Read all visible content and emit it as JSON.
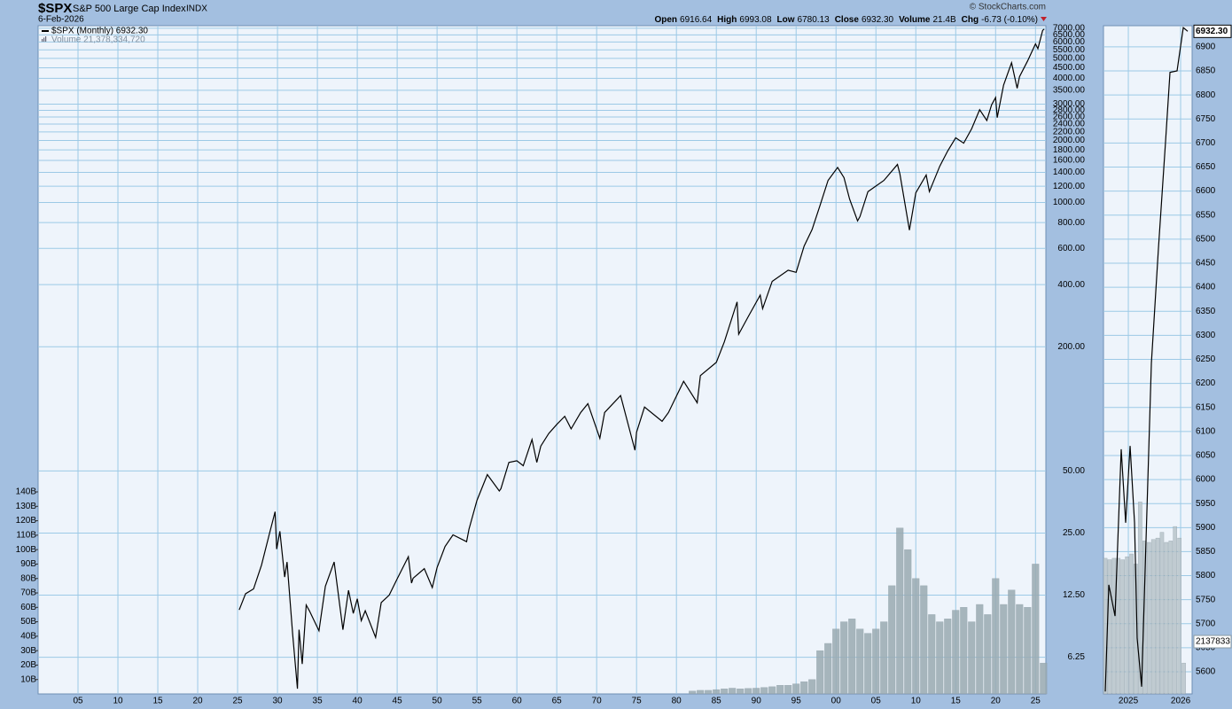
{
  "chart_data": [
    {
      "type": "line",
      "title": "$SPX",
      "subtitle": "S&P 500 Large Cap Index",
      "exchange": "INDX",
      "date": "6-Feb-2026",
      "source": "© StockCharts.com",
      "quote": [
        {
          "label": "Open",
          "value": "6916.64"
        },
        {
          "label": "High",
          "value": "6993.08"
        },
        {
          "label": "Low",
          "value": "6780.13"
        },
        {
          "label": "Close",
          "value": "6932.30"
        },
        {
          "label": "Volume",
          "value": "21.4B"
        },
        {
          "label": "Chg",
          "value": "-6.73 (-0.10%)"
        }
      ],
      "log_scale": true,
      "grid": true,
      "xlim": [
        1900,
        2026.3
      ],
      "ylim": [
        4.15,
        7200
      ],
      "y2lim": [
        0,
        463
      ],
      "xticks": [
        {
          "value": 1905,
          "label": "05"
        },
        {
          "value": 1910,
          "label": "10"
        },
        {
          "value": 1915,
          "label": "15"
        },
        {
          "value": 1920,
          "label": "20"
        },
        {
          "value": 1925,
          "label": "25"
        },
        {
          "value": 1930,
          "label": "30"
        },
        {
          "value": 1935,
          "label": "35"
        },
        {
          "value": 1940,
          "label": "40"
        },
        {
          "value": 1945,
          "label": "45"
        },
        {
          "value": 1950,
          "label": "50"
        },
        {
          "value": 1955,
          "label": "55"
        },
        {
          "value": 1960,
          "label": "60"
        },
        {
          "value": 1965,
          "label": "65"
        },
        {
          "value": 1970,
          "label": "70"
        },
        {
          "value": 1975,
          "label": "75"
        },
        {
          "value": 1980,
          "label": "80"
        },
        {
          "value": 1985,
          "label": "85"
        },
        {
          "value": 1990,
          "label": "90"
        },
        {
          "value": 1995,
          "label": "95"
        },
        {
          "value": 2000,
          "label": "00"
        },
        {
          "value": 2005,
          "label": "05"
        },
        {
          "value": 2010,
          "label": "10"
        },
        {
          "value": 2015,
          "label": "15"
        },
        {
          "value": 2020,
          "label": "20"
        },
        {
          "value": 2025,
          "label": "25"
        }
      ],
      "yticks": [
        6.25,
        {
          "value": 12.5,
          "label": "12.50"
        },
        {
          "value": 25,
          "label": "25.00"
        },
        {
          "value": 50,
          "label": "50.00"
        },
        {
          "value": 200,
          "label": "200.00"
        },
        {
          "value": 400,
          "label": "400.00"
        },
        {
          "value": 600,
          "label": "600.00"
        },
        {
          "value": 800,
          "label": "800.00"
        },
        {
          "value": 1000,
          "label": "1000.00"
        },
        {
          "value": 1200,
          "label": "1200.00"
        },
        {
          "value": 1400,
          "label": "1400.00"
        },
        {
          "value": 1600,
          "label": "1600.00"
        },
        {
          "value": 1800,
          "label": "1800.00"
        },
        {
          "value": 2000,
          "label": "2000.00"
        },
        {
          "value": 2200,
          "label": "2200.00"
        },
        {
          "value": 2400,
          "label": "2400.00"
        },
        {
          "value": 2600,
          "label": "2600.00"
        },
        {
          "value": 2800,
          "label": "2800.00"
        },
        {
          "value": 3000,
          "label": "3000.00"
        },
        {
          "value": 3500,
          "label": "3500.00"
        },
        {
          "value": 4000,
          "label": "4000.00"
        },
        {
          "value": 4500,
          "label": "4500.00"
        },
        {
          "value": 5000,
          "label": "5000.00"
        },
        {
          "value": 5500,
          "label": "5500.00"
        },
        {
          "value": 6000,
          "label": "6000.00"
        },
        {
          "value": 6500,
          "label": "6500.00"
        },
        {
          "value": 7000,
          "label": "7000.00"
        }
      ],
      "y2ticks": [
        {
          "value": 10,
          "label": "10B"
        },
        {
          "value": 20,
          "label": "20B"
        },
        {
          "value": 30,
          "label": "30B"
        },
        {
          "value": 40,
          "label": "40B"
        },
        {
          "value": 50,
          "label": "50B"
        },
        {
          "value": 60,
          "label": "60B"
        },
        {
          "value": 70,
          "label": "70B"
        },
        {
          "value": 80,
          "label": "80B"
        },
        {
          "value": 90,
          "label": "90B"
        },
        {
          "value": 100,
          "label": "100B"
        },
        {
          "value": 110,
          "label": "110B"
        },
        {
          "value": 120,
          "label": "120B"
        },
        {
          "value": 130,
          "label": "130B"
        },
        {
          "value": 140,
          "label": "140B"
        }
      ],
      "series": [
        {
          "name": "$SPX (Monthly) 6932.30",
          "color": "#000000",
          "x": [
            1925.2,
            1926,
            1927,
            1928,
            1929,
            1929.7,
            1929.9,
            1930.3,
            1930.9,
            1931.2,
            1931.9,
            1932.5,
            1932.7,
            1933.1,
            1933.6,
            1934,
            1935.2,
            1936,
            1937.1,
            1938.2,
            1938.9,
            1939.5,
            1940,
            1940.5,
            1941,
            1942.3,
            1943,
            1944,
            1945,
            1946.4,
            1946.8,
            1947,
            1948.4,
            1949.4,
            1950,
            1951,
            1952,
            1953.7,
            1954,
            1955,
            1956.3,
            1957.8,
            1958,
            1959,
            1960,
            1960.8,
            1961.9,
            1962.5,
            1963,
            1964,
            1965,
            1966,
            1966.8,
            1968,
            1968.9,
            1970.4,
            1971,
            1973,
            1974.8,
            1975,
            1976,
            1978.2,
            1979,
            1980.9,
            1982.6,
            1983,
            1985,
            1986,
            1987.6,
            1987.8,
            1989,
            1990.5,
            1990.8,
            1992,
            1994,
            1995,
            1996,
            1997,
            1998,
            1999,
            2000.2,
            2001,
            2001.7,
            2002.7,
            2003,
            2004,
            2006,
            2007.7,
            2008,
            2009.2,
            2010,
            2011.3,
            2011.7,
            2013,
            2014,
            2015,
            2016,
            2017,
            2018,
            2018.9,
            2019.5,
            2020,
            2020.2,
            2021,
            2022,
            2022.7,
            2023,
            2024,
            2025,
            2025.3,
            2025.9,
            2026.1
          ],
          "values": [
            10.6,
            12.7,
            13.4,
            17.5,
            24.9,
            31.7,
            20.9,
            25.5,
            15.3,
            18.1,
            8.1,
            4.4,
            8.5,
            5.8,
            11.2,
            10.5,
            8.4,
            13.8,
            18.1,
            8.5,
            13.2,
            10.2,
            12.0,
            9.4,
            10.5,
            7.8,
            11.5,
            12.5,
            15,
            19.2,
            14.3,
            15.1,
            16.8,
            13.6,
            17.0,
            21.5,
            24.5,
            22.7,
            26.1,
            36,
            48,
            40,
            41,
            55,
            56,
            53,
            71,
            55,
            66,
            76,
            84,
            92,
            80,
            96,
            106,
            72,
            96,
            116,
            63,
            77,
            102,
            87,
            96,
            136,
            107,
            145,
            168,
            211,
            330,
            230,
            280,
            356,
            306,
            415,
            470,
            459,
            615,
            740,
            970,
            1280,
            1480,
            1320,
            1040,
            815,
            855,
            1130,
            1280,
            1530,
            1380,
            735,
            1115,
            1360,
            1130,
            1500,
            1780,
            2060,
            1940,
            2280,
            2820,
            2500,
            2980,
            3230,
            2580,
            3710,
            4760,
            3580,
            4080,
            4850,
            5880,
            5570,
            6840,
            6932.3
          ]
        },
        {
          "name": "Volume 21,378,334,720",
          "type": "bar",
          "axis": "y2",
          "color": "#9aabb2",
          "x": [
            1982,
            1983,
            1984,
            1985,
            1986,
            1987,
            1988,
            1989,
            1990,
            1991,
            1992,
            1993,
            1994,
            1995,
            1996,
            1997,
            1998,
            1999,
            2000,
            2001,
            2002,
            2003,
            2004,
            2005,
            2006,
            2007,
            2008,
            2009,
            2010,
            2011,
            2012,
            2013,
            2014,
            2015,
            2016,
            2017,
            2018,
            2019,
            2020,
            2021,
            2022,
            2023,
            2024,
            2025,
            2026
          ],
          "values": [
            2,
            2.5,
            2.5,
            3,
            3.5,
            4,
            3.5,
            3.8,
            4,
            4.5,
            5,
            6,
            6,
            7,
            8.5,
            10,
            30,
            35,
            45,
            50,
            52,
            45,
            42,
            45,
            50,
            75,
            115,
            100,
            80,
            75,
            55,
            50,
            52,
            58,
            60,
            50,
            62,
            55,
            80,
            62,
            72,
            62,
            60,
            90,
            21.4
          ]
        }
      ]
    },
    {
      "type": "line",
      "grid": true,
      "log_scale": false,
      "xlim": [
        2024.525,
        2026.22
      ],
      "ylim": [
        5554,
        6944
      ],
      "y2lim": [
        0,
        463
      ],
      "xticks": [
        2025,
        2026
      ],
      "yticks": [
        5600,
        5650,
        5700,
        5750,
        5800,
        5850,
        5900,
        5950,
        6000,
        6050,
        6100,
        6150,
        6200,
        6250,
        6300,
        6350,
        6400,
        6450,
        6500,
        6550,
        6600,
        6650,
        6700,
        6750,
        6800,
        6850,
        6900
      ],
      "last_value_label": "6932.30",
      "volume_label": "2137833",
      "series": [
        {
          "color": "#000000",
          "x": [
            2024.559,
            2024.627,
            2024.746,
            2024.864,
            2024.949,
            2025.034,
            2025.119,
            2025.169,
            2025.254,
            2025.441,
            2025.576,
            2025.712,
            2025.797,
            2025.932,
            2026.051,
            2026.136
          ],
          "values": [
            5559,
            5781,
            5716,
            6063,
            5910,
            6070,
            5910,
            5670,
            5569,
            6242,
            6481,
            6703,
            6847,
            6850,
            6940,
            6932.3
          ]
        },
        {
          "type": "bar",
          "axis": "y2",
          "color": "#b8c4ca",
          "x": [
            2024.56,
            2024.643,
            2024.727,
            2024.81,
            2024.893,
            2024.977,
            2025.06,
            2025.143,
            2025.227,
            2025.31,
            2025.393,
            2025.477,
            2025.56,
            2025.643,
            2025.727,
            2025.81,
            2025.893,
            2025.977,
            2026.06
          ],
          "values": [
            94,
            93,
            94,
            94,
            93,
            95,
            97,
            90,
            133,
            106,
            105,
            107,
            108,
            112,
            105,
            106,
            116,
            108,
            21.4
          ]
        }
      ]
    }
  ]
}
